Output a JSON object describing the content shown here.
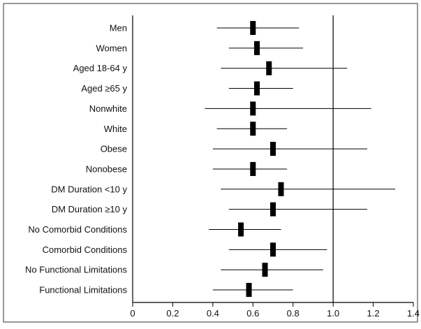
{
  "chart_data": {
    "type": "forest",
    "title": "",
    "xlabel": "",
    "ylabel": "",
    "xlim": [
      0,
      1.4
    ],
    "xticks": [
      "0",
      "0.2",
      "0.4",
      "0.6",
      "0.8",
      "1.0",
      "1.2",
      "1.4"
    ],
    "reference_line": 1.0,
    "grid": false,
    "categories": [
      "Men",
      "Women",
      "Aged 18-64 y",
      "Aged ≥65 y",
      "Nonwhite",
      "White",
      "Obese",
      "Nonobese",
      "DM Duration <10 y",
      "DM Duration ≥10 y",
      "No Comorbid Conditions",
      "Comorbid Conditions",
      "No Functional Limitations",
      "Functional Limitations"
    ],
    "estimates": [
      0.6,
      0.62,
      0.68,
      0.62,
      0.6,
      0.6,
      0.7,
      0.6,
      0.74,
      0.7,
      0.54,
      0.7,
      0.66,
      0.58
    ],
    "ci_low": [
      0.42,
      0.48,
      0.44,
      0.48,
      0.36,
      0.42,
      0.4,
      0.4,
      0.44,
      0.48,
      0.38,
      0.48,
      0.44,
      0.4
    ],
    "ci_high": [
      0.83,
      0.85,
      1.07,
      0.8,
      1.19,
      0.77,
      1.17,
      0.77,
      1.31,
      1.17,
      0.74,
      0.97,
      0.95,
      0.8
    ]
  }
}
